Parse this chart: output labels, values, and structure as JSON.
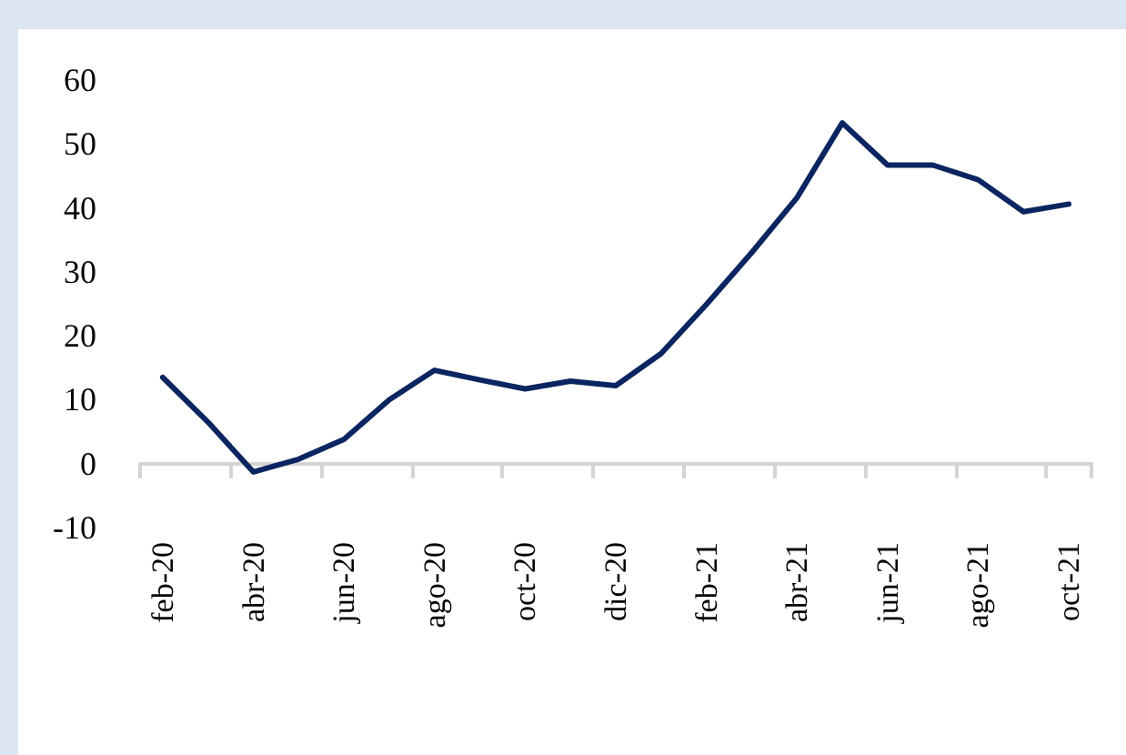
{
  "chart_data": {
    "type": "line",
    "categories": [
      "feb-20",
      null,
      "abr-20",
      null,
      "jun-20",
      null,
      "ago-20",
      null,
      "oct-20",
      null,
      "dic-20",
      null,
      "feb-21",
      null,
      "abr-21",
      null,
      "jun-21",
      null,
      "ago-21",
      null,
      "oct-21"
    ],
    "values": [
      13.5,
      6.5,
      -1.3,
      0.7,
      3.8,
      10,
      14.6,
      13.1,
      11.7,
      12.9,
      12.2,
      17.2,
      24.9,
      33,
      41.6,
      53.3,
      46.7,
      46.7,
      44.4,
      39.4,
      40.6
    ],
    "color": "#0b2561",
    "ylim": [
      -10,
      60
    ],
    "yticks": [
      -10,
      0,
      10,
      20,
      30,
      40,
      50,
      60
    ],
    "marker": "none",
    "line_style": "solid"
  }
}
